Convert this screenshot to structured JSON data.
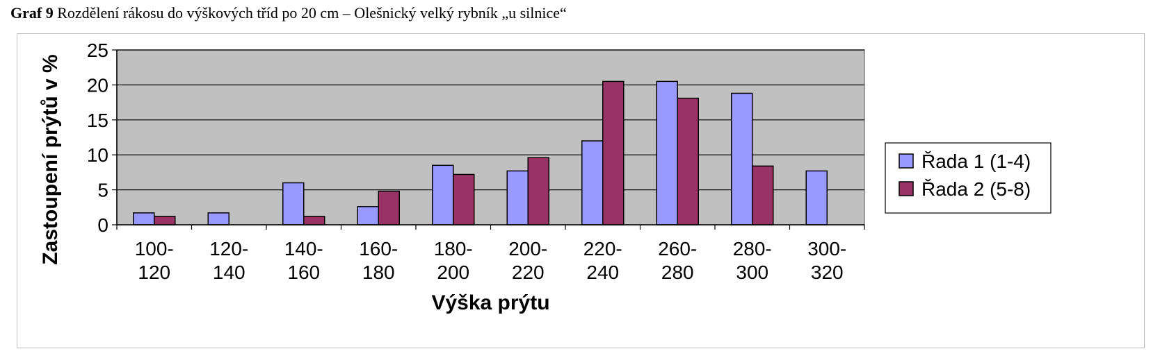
{
  "caption": {
    "label": "Graf 9",
    "text": "Rozdělení rákosu do výškových tříd po 20 cm – Olešnický velký rybník „u silnice“"
  },
  "chart_data": {
    "type": "bar",
    "categories": [
      [
        "100-",
        "120"
      ],
      [
        "120-",
        "140"
      ],
      [
        "140-",
        "160"
      ],
      [
        "160-",
        "180"
      ],
      [
        "180-",
        "200"
      ],
      [
        "200-",
        "220"
      ],
      [
        "220-",
        "240"
      ],
      [
        "260-",
        "280"
      ],
      [
        "280-",
        "300"
      ],
      [
        "300-",
        "320"
      ]
    ],
    "series": [
      {
        "name": "Řada 1 (1-4)",
        "color": "#9999ff",
        "values": [
          1.7,
          1.7,
          6.0,
          2.6,
          8.5,
          7.7,
          12.0,
          20.5,
          18.8,
          7.7
        ]
      },
      {
        "name": "Řada 2 (5-8)",
        "color": "#993366",
        "values": [
          1.2,
          0,
          1.2,
          4.8,
          7.2,
          9.6,
          20.5,
          18.1,
          8.4,
          0
        ]
      }
    ],
    "xlabel": "Výška prýtu",
    "ylabel": "Zastoupení prýtů v %",
    "ylim": [
      0,
      25
    ],
    "yticks": [
      0,
      5,
      10,
      15,
      20,
      25
    ],
    "grid": true,
    "plot_background": "#c0c0c0",
    "legend_position": "right"
  }
}
